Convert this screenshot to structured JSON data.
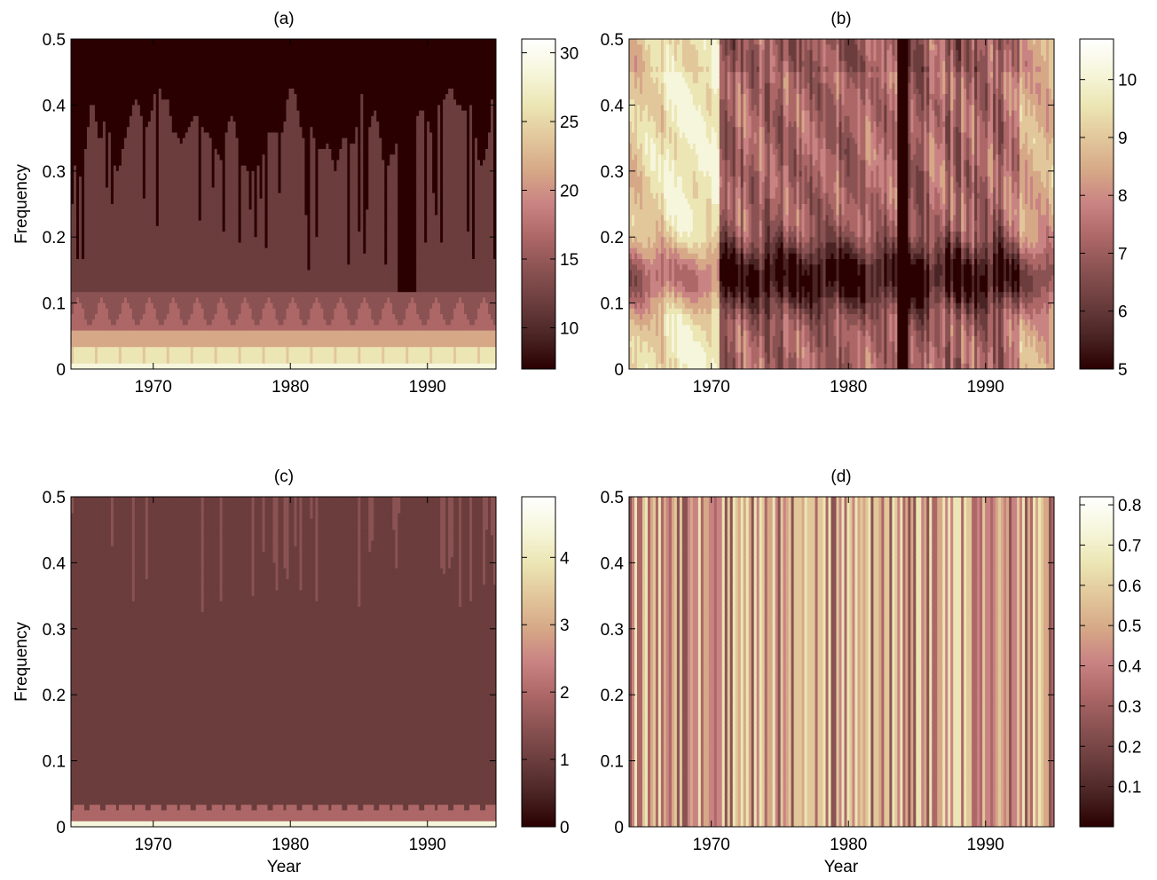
{
  "figure": {
    "x_tick_labels": [
      "1970",
      "1980",
      "1990"
    ],
    "x_label": "Year",
    "y_label": "Frequency",
    "y_tick_labels": [
      "0",
      "0.1",
      "0.2",
      "0.3",
      "0.4",
      "0.5"
    ]
  },
  "colormap": [
    "#2a0000",
    "#4a2424",
    "#6b3d3d",
    "#8a5252",
    "#ad6767",
    "#c98383",
    "#d6a887",
    "#e2c79b",
    "#ece6b4",
    "#f6f6dc",
    "#ffffff"
  ],
  "chart_data": [
    {
      "type": "heatmap",
      "panel": "(a)",
      "title": "(a)",
      "xlabel": "",
      "ylabel": "Frequency",
      "x_range": [
        1964,
        1995
      ],
      "ylim": [
        0,
        0.5
      ],
      "colorbar_range": [
        7,
        31
      ],
      "colorbar_ticks": [
        10,
        15,
        20,
        25,
        30
      ],
      "pattern": "low frequencies (0-0.1) bright with high values near 0; mid band moderate; upper frequencies dark with deep dark spikes around 1984"
    },
    {
      "type": "heatmap",
      "panel": "(b)",
      "title": "(b)",
      "xlabel": "",
      "ylabel": "",
      "x_range": [
        1964,
        1995
      ],
      "ylim": [
        0,
        0.5
      ],
      "colorbar_range": [
        5,
        10.7
      ],
      "colorbar_ticks": [
        5,
        6,
        7,
        8,
        9,
        10
      ],
      "pattern": "vertical stripes; bright around 1966-1970; dark band around frequency 0.15; very dark vertical strip near 1984"
    },
    {
      "type": "heatmap",
      "panel": "(c)",
      "title": "(c)",
      "xlabel": "Year",
      "ylabel": "Frequency",
      "x_range": [
        1964,
        1995
      ],
      "ylim": [
        0,
        0.5
      ],
      "colorbar_range": [
        0,
        4.9
      ],
      "colorbar_ticks": [
        0,
        1,
        2,
        3,
        4
      ],
      "pattern": "uniform dark field around value 1; bright thin band near frequency 0"
    },
    {
      "type": "heatmap",
      "panel": "(d)",
      "title": "(d)",
      "xlabel": "Year",
      "ylabel": "",
      "x_range": [
        1964,
        1995
      ],
      "ylim": [
        0,
        0.5
      ],
      "colorbar_range": [
        0,
        0.82
      ],
      "colorbar_ticks": [
        0.1,
        0.2,
        0.3,
        0.4,
        0.5,
        0.6,
        0.7,
        0.8
      ],
      "pattern": "dense full-height vertical stripes alternating light and pink tones"
    }
  ]
}
